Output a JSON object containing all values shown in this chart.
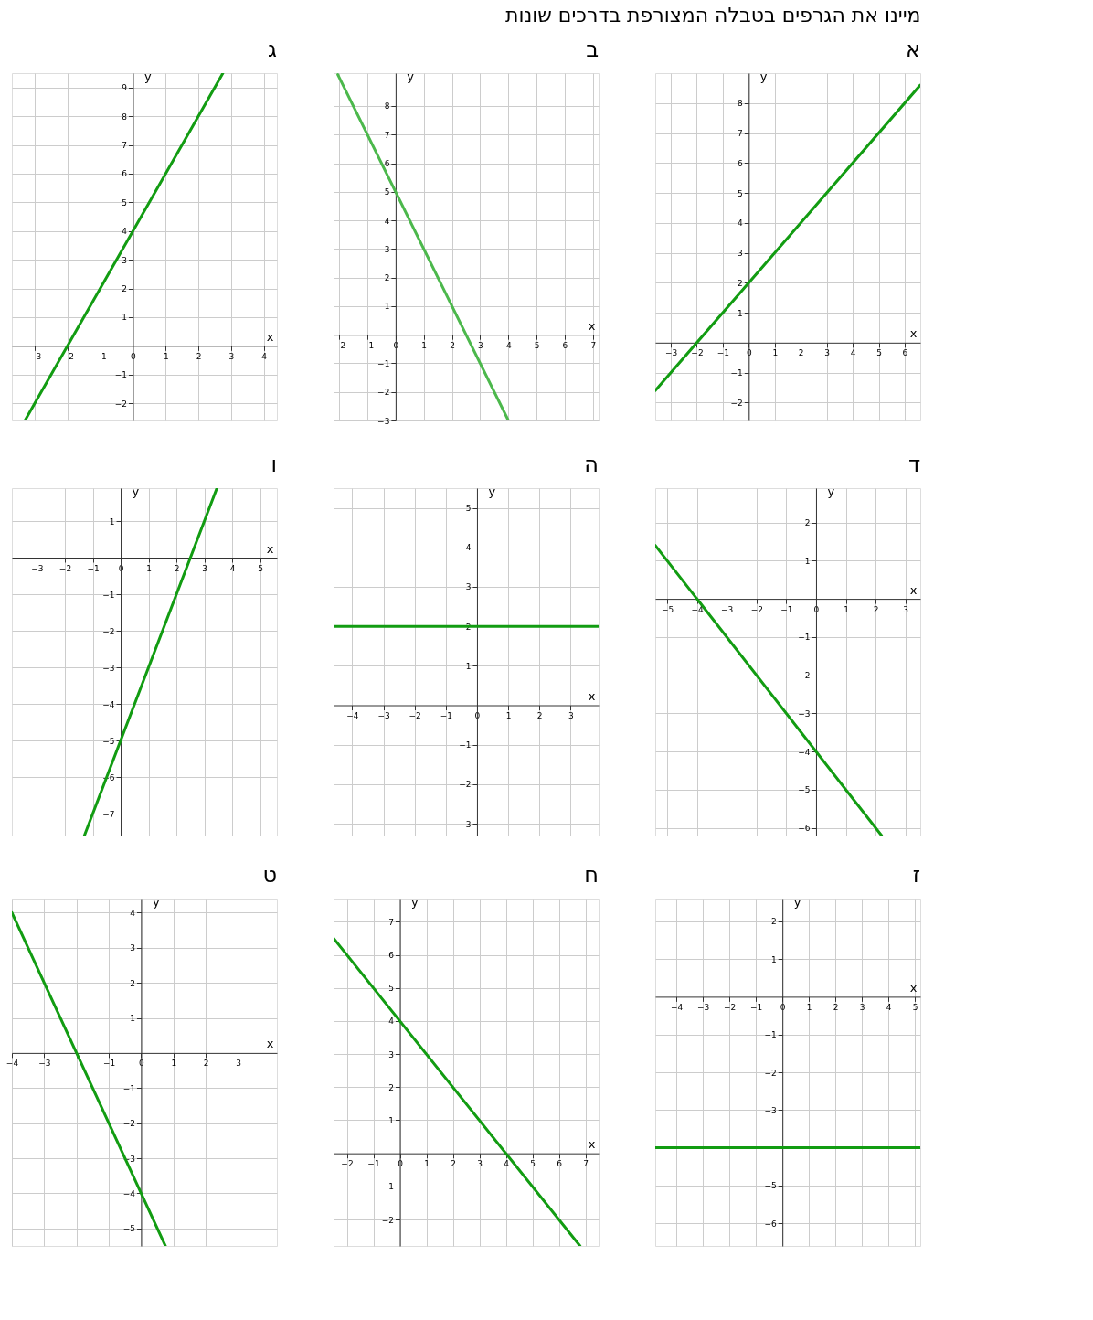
{
  "chart_data": [
    {
      "type": "other",
      "title": "מיינו את הגרפים בטבלה המצורפת בדרכים שונות"
    },
    {
      "type": "line",
      "title": "א",
      "xlabel": "x",
      "ylabel": "y",
      "grid": true,
      "x": [
        -3.6,
        6.6
      ],
      "series": [
        {
          "color": "#129c12",
          "values": [
            -1.6,
            8.6
          ]
        }
      ],
      "xlim": [
        -3.6,
        6.6
      ],
      "ylim": [
        -2.6,
        9.0
      ],
      "xticks": [
        -3,
        -2,
        -1,
        0,
        1,
        2,
        3,
        4,
        5,
        6
      ],
      "yticks": [
        -2,
        -1,
        1,
        2,
        3,
        4,
        5,
        6,
        7,
        8
      ]
    },
    {
      "type": "line",
      "title": "ב",
      "xlabel": "x",
      "ylabel": "y",
      "grid": true,
      "x": [
        -2.05,
        4
      ],
      "series": [
        {
          "color": "#4cb84c",
          "values": [
            9.1,
            -3
          ]
        }
      ],
      "xlim": [
        -2.2,
        7.2
      ],
      "ylim": [
        -3,
        9.15
      ],
      "xticks": [
        -2,
        -1,
        0,
        1,
        2,
        3,
        4,
        5,
        6,
        7
      ],
      "yticks": [
        -3,
        -2,
        -1,
        1,
        2,
        3,
        4,
        5,
        6,
        7,
        8
      ]
    },
    {
      "type": "line",
      "title": "ג",
      "xlabel": "x",
      "ylabel": "y",
      "grid": true,
      "x": [
        -3.3,
        2.75
      ],
      "series": [
        {
          "color": "#129c12",
          "values": [
            -2.6,
            9.5
          ]
        }
      ],
      "xlim": [
        -3.7,
        4.4
      ],
      "ylim": [
        -2.6,
        9.5
      ],
      "xticks": [
        -3,
        -2,
        -1,
        0,
        1,
        2,
        3,
        4
      ],
      "yticks": [
        -2,
        -1,
        1,
        2,
        3,
        4,
        5,
        6,
        7,
        8,
        9
      ]
    },
    {
      "type": "line",
      "title": "ד",
      "xlabel": "x",
      "ylabel": "y",
      "grid": true,
      "x": [
        -5.4,
        2.2
      ],
      "series": [
        {
          "color": "#129c12",
          "values": [
            1.4,
            -6.2
          ]
        }
      ],
      "xlim": [
        -5.4,
        3.5
      ],
      "ylim": [
        -6.2,
        2.9
      ],
      "xticks": [
        -5,
        -4,
        -3,
        -2,
        -1,
        0,
        1,
        2,
        3
      ],
      "yticks": [
        -6,
        -5,
        -4,
        -3,
        -2,
        -1,
        1,
        2
      ]
    },
    {
      "type": "line",
      "title": "ה",
      "xlabel": "x",
      "ylabel": "y",
      "grid": true,
      "x": [
        -4.6,
        3.9
      ],
      "series": [
        {
          "color": "#129c12",
          "values": [
            2,
            2
          ]
        }
      ],
      "xlim": [
        -4.6,
        3.9
      ],
      "ylim": [
        -3.3,
        5.5
      ],
      "xticks": [
        -4,
        -3,
        -2,
        -1,
        0,
        1,
        2,
        3
      ],
      "yticks": [
        -3,
        -2,
        -1,
        1,
        2,
        3,
        4,
        5
      ]
    },
    {
      "type": "line",
      "title": "ו",
      "xlabel": "x",
      "ylabel": "y",
      "grid": true,
      "x": [
        -1.3,
        3.45
      ],
      "series": [
        {
          "color": "#129c12",
          "values": [
            -7.6,
            1.9
          ]
        }
      ],
      "xlim": [
        -3.9,
        5.6
      ],
      "ylim": [
        -7.6,
        1.9
      ],
      "xticks": [
        -3,
        -2,
        -1,
        0,
        1,
        2,
        3,
        4,
        5
      ],
      "yticks": [
        -7,
        -6,
        -5,
        -4,
        -3,
        -2,
        -1,
        1
      ]
    },
    {
      "type": "line",
      "title": "ז",
      "xlabel": "x",
      "ylabel": "y",
      "grid": true,
      "x": [
        -4.8,
        5.2
      ],
      "series": [
        {
          "color": "#129c12",
          "values": [
            -4,
            -4
          ]
        }
      ],
      "xlim": [
        -4.8,
        5.2
      ],
      "ylim": [
        -6.6,
        2.6
      ],
      "xticks": [
        -4,
        -3,
        -2,
        -1,
        0,
        1,
        2,
        3,
        4,
        5
      ],
      "yticks": [
        -6,
        -5,
        {
          "value": -4,
          "label": null
        },
        -3,
        -2,
        -1,
        1,
        2
      ]
    },
    {
      "type": "line",
      "title": "ח",
      "xlabel": "x",
      "ylabel": "y",
      "grid": true,
      "x": [
        -2.5,
        6.8
      ],
      "series": [
        {
          "color": "#129c12",
          "values": [
            6.5,
            -2.8
          ]
        }
      ],
      "xlim": [
        -2.5,
        7.5
      ],
      "ylim": [
        -2.8,
        7.7
      ],
      "xticks": [
        -2,
        -1,
        0,
        1,
        2,
        3,
        4,
        5,
        6,
        7
      ],
      "yticks": [
        -2,
        -1,
        1,
        2,
        3,
        4,
        5,
        6,
        7
      ]
    },
    {
      "type": "line",
      "title": "ט",
      "xlabel": "x",
      "ylabel": "y",
      "grid": true,
      "x": [
        -4,
        0.75
      ],
      "series": [
        {
          "color": "#129c12",
          "values": [
            4,
            -5.5
          ]
        }
      ],
      "xlim": [
        -4,
        4.2
      ],
      "ylim": [
        -5.5,
        4.4
      ],
      "xticks": [
        -4,
        -3,
        {
          "value": -2,
          "label": null
        },
        -1,
        0,
        1,
        2,
        3
      ],
      "yticks": [
        -5,
        -4,
        -3,
        -2,
        -1,
        1,
        2,
        3,
        4
      ]
    }
  ]
}
